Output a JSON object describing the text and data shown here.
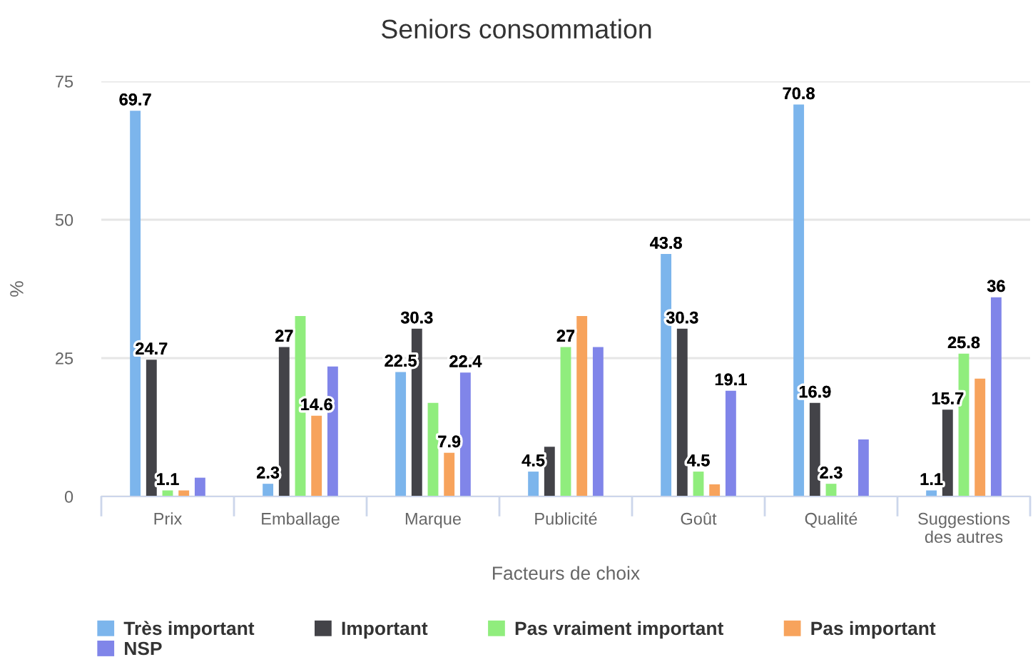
{
  "chart_data": {
    "type": "bar",
    "title": "Seniors consommation",
    "xlabel": "Facteurs de choix",
    "ylabel": "%",
    "categories": [
      "Prix",
      "Emballage",
      "Marque",
      "Publicité",
      "Goût",
      "Qualité",
      "Suggestions des autres"
    ],
    "series": [
      {
        "name": "Très important",
        "color": "#7cb5ec",
        "values": [
          69.7,
          2.3,
          22.5,
          4.5,
          43.8,
          70.8,
          1.1
        ],
        "value_labels": [
          "69.7",
          "2.3",
          "22.5",
          "4.5",
          "43.8",
          "70.8",
          "1.1"
        ]
      },
      {
        "name": "Important",
        "color": "#434348",
        "values": [
          24.7,
          27,
          30.3,
          9,
          30.3,
          16.9,
          15.7
        ],
        "value_labels": [
          "24.7",
          "27",
          "30.3",
          null,
          "30.3",
          "16.9",
          "15.7"
        ]
      },
      {
        "name": "Pas vraiment important",
        "color": "#90ed7d",
        "values": [
          1.1,
          32.6,
          16.9,
          27,
          4.5,
          2.3,
          25.8
        ],
        "value_labels": [
          "1.1",
          null,
          null,
          "27",
          "4.5",
          "2.3",
          "25.8"
        ]
      },
      {
        "name": "Pas important",
        "color": "#f7a35c",
        "values": [
          1.1,
          14.6,
          7.9,
          32.6,
          2.2,
          null,
          21.3
        ],
        "value_labels": [
          null,
          "14.6",
          "7.9",
          null,
          null,
          null,
          null
        ]
      },
      {
        "name": "NSP",
        "color": "#8085e9",
        "values": [
          3.4,
          23.5,
          22.4,
          27,
          19.1,
          10.3,
          36
        ],
        "value_labels": [
          null,
          null,
          "22.4",
          null,
          "19.1",
          null,
          "36"
        ]
      }
    ],
    "ylim": [
      0,
      75
    ],
    "yticks": [
      0,
      25,
      50,
      75
    ],
    "grid": "y",
    "legend": "bottom"
  }
}
